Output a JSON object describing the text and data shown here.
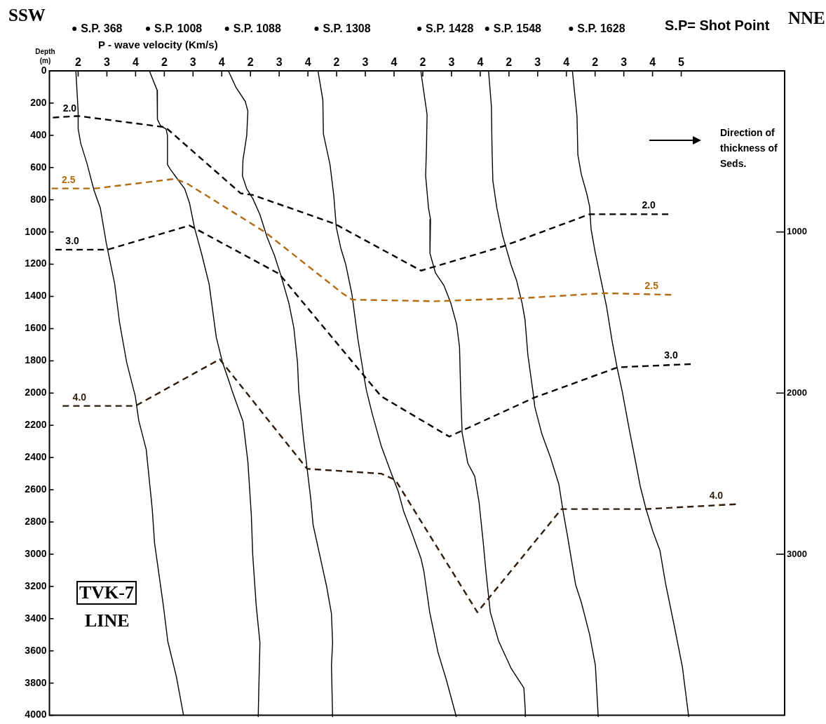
{
  "chart_data": [
    {
      "type": "line",
      "xlabel": "P - wave velocity (Km/s)",
      "ylabel": "Depth (m)",
      "legend": "top",
      "xlim": [
        1,
        26.6
      ],
      "xticks": [
        2,
        3,
        4
      ],
      "ylim": [
        4000,
        0
      ],
      "yticks": [
        0,
        200,
        400,
        600,
        800,
        1000,
        1200,
        1400,
        1600,
        1800,
        2000,
        2200,
        2400,
        2600,
        2800,
        3000,
        3200,
        3400,
        3600,
        3800,
        4000
      ],
      "y2lim": [
        4000,
        0
      ],
      "y2ticks": [
        1000,
        2000,
        3000
      ],
      "series": [
        {
          "name": "S.P. 368",
          "color": "#000000",
          "line_style": "solid",
          "x": [
            1.92,
            2.0,
            2.0,
            2.09,
            2.3,
            2.55,
            2.77,
            2.98,
            3.27,
            3.44,
            3.69,
            3.99,
            4.11,
            4.37,
            4.58,
            4.66,
            4.96,
            5.12,
            5.42,
            5.67
          ],
          "values": [
            0,
            250,
            360,
            450,
            570,
            740,
            850,
            1070,
            1320,
            1560,
            1810,
            2020,
            2170,
            2350,
            2720,
            2930,
            3310,
            3540,
            3760,
            4000
          ]
        },
        {
          "name": "2.0",
          "color": "#000000",
          "line_style": "dashed",
          "x": [
            1.12,
            2.0,
            5.04,
            7.66,
            8.08,
            10.94,
            13.94,
            16.78,
            19.81,
            20.11,
            22.55
          ],
          "values": [
            290,
            280,
            350,
            760,
            770,
            950,
            1240,
            1090,
            890,
            890,
            890
          ]
        },
        {
          "name": "2.5",
          "color": "#b36b12",
          "line_style": "dashed",
          "x": [
            1.08,
            2.6,
            5.38,
            5.8,
            8.5,
            11.2,
            11.53,
            14.43,
            17.56,
            20.3,
            22.65
          ],
          "values": [
            730,
            730,
            670,
            700,
            1000,
            1380,
            1420,
            1430,
            1410,
            1380,
            1390
          ]
        },
        {
          "name": "3.0",
          "color": "#000000",
          "line_style": "dashed",
          "x": [
            1.21,
            3.02,
            5.88,
            9.0,
            12.55,
            14.92,
            17.86,
            20.79,
            23.33
          ],
          "values": [
            1110,
            1110,
            960,
            1260,
            2020,
            2270,
            2030,
            1840,
            1820
          ]
        },
        {
          "name": "4.0",
          "color": "#2e1d0c",
          "line_style": "dashed",
          "x": [
            1.46,
            3.99,
            6.93,
            9.97,
            12.55,
            13.05,
            15.9,
            18.83,
            21.77,
            24.9
          ],
          "values": [
            2080,
            2080,
            1790,
            2470,
            2500,
            2540,
            3360,
            2720,
            2720,
            2690
          ]
        }
      ],
      "annotations": [
        "SSW",
        "S.P= Shot Point",
        "NNE",
        "Direction of thickness of Seds.",
        "TVK-7",
        "LINE"
      ]
    },
    {
      "type": "line",
      "legend": "top",
      "tick_labels": "x",
      "xlim": [
        -2,
        23.6
      ],
      "xticks": [
        2,
        3,
        4
      ],
      "ylim": [
        4000,
        0
      ],
      "series": [
        {
          "name": "S.P. 1008",
          "color": "#000000",
          "line_style": "solid",
          "x": [
            1.48,
            1.75,
            1.77,
            1.75,
            1.87,
            2.06,
            2.11,
            2.11,
            2.21,
            2.46,
            2.71,
            2.88,
            3.05,
            3.31,
            3.56,
            3.81,
            4.02,
            4.23,
            4.36,
            4.74,
            4.91,
            5.03,
            5.08,
            5.2,
            5.33,
            5.29,
            5.27
          ],
          "values": [
            0,
            120,
            220,
            300,
            340,
            360,
            400,
            580,
            610,
            670,
            730,
            820,
            970,
            1140,
            1320,
            1650,
            1800,
            1910,
            1980,
            2170,
            2420,
            2750,
            3000,
            3310,
            3540,
            3830,
            4000
          ]
        }
      ]
    },
    {
      "type": "line",
      "legend": "top",
      "tick_labels": "x",
      "xlim": [
        -5,
        20.6
      ],
      "xticks": [
        2,
        3,
        4
      ],
      "ylim": [
        4000,
        0
      ],
      "series": [
        {
          "name": "S.P. 1088",
          "color": "#000000",
          "line_style": "solid",
          "x": [
            1.23,
            1.49,
            1.82,
            1.91,
            1.87,
            1.74,
            1.72,
            1.87,
            2.08,
            2.33,
            2.58,
            2.83,
            3.05,
            3.34,
            3.51,
            3.64,
            3.68,
            3.85,
            4.1,
            4.18,
            4.44,
            4.65,
            4.82,
            4.86,
            4.82,
            4.86
          ],
          "values": [
            0,
            100,
            190,
            250,
            400,
            550,
            650,
            730,
            790,
            890,
            1030,
            1140,
            1260,
            1440,
            1590,
            1810,
            1980,
            2280,
            2650,
            2810,
            3020,
            3190,
            3360,
            3540,
            3680,
            4000
          ]
        }
      ]
    },
    {
      "type": "line",
      "legend": "top",
      "tick_labels": "x",
      "xlim": [
        -8,
        17.6
      ],
      "xticks": [
        2,
        3,
        4
      ],
      "ylim": [
        4000,
        0
      ],
      "series": [
        {
          "name": "S.P. 1308",
          "color": "#000000",
          "line_style": "solid",
          "x": [
            1.35,
            1.52,
            1.54,
            1.77,
            1.9,
            1.99,
            2.15,
            2.32,
            2.53,
            2.74,
            2.95,
            3.04,
            3.25,
            3.55,
            3.88,
            4.14,
            4.34,
            4.64,
            4.94,
            5.04,
            5.24,
            5.53,
            5.82,
            6.17
          ],
          "values": [
            0,
            180,
            390,
            580,
            770,
            970,
            1100,
            1200,
            1380,
            1660,
            1890,
            1980,
            2130,
            2320,
            2480,
            2600,
            2730,
            2870,
            3020,
            3100,
            3350,
            3600,
            3770,
            4000
          ]
        }
      ]
    },
    {
      "type": "line",
      "legend": "top",
      "tick_labels": "x",
      "xlim": [
        -11,
        14.6
      ],
      "xticks": [
        2,
        3,
        4
      ],
      "ylim": [
        4000,
        0
      ],
      "series": [
        {
          "name": "S.P. 1428",
          "color": "#000000",
          "line_style": "solid",
          "x": [
            1.93,
            2.15,
            2.13,
            2.1,
            2.2,
            2.27,
            2.25,
            2.44,
            2.74,
            2.98,
            3.18,
            3.28,
            3.32,
            3.37,
            3.57,
            3.81,
            3.96,
            4.1,
            4.2,
            4.35,
            4.64,
            5.08,
            5.52,
            5.57,
            5.57
          ],
          "values": [
            0,
            270,
            470,
            650,
            850,
            920,
            1130,
            1250,
            1330,
            1440,
            1570,
            1710,
            1990,
            2240,
            2430,
            2510,
            2670,
            2910,
            3100,
            3350,
            3530,
            3700,
            3820,
            3960,
            4000
          ]
        }
      ]
    },
    {
      "type": "line",
      "legend": "top",
      "tick_labels": "x",
      "xlim": [
        -14,
        11.6
      ],
      "xticks": [
        2,
        3,
        4
      ],
      "ylim": [
        4000,
        0
      ],
      "series": [
        {
          "name": "S.P. 1548",
          "color": "#000000",
          "line_style": "solid",
          "x": [
            1.29,
            1.39,
            1.41,
            1.44,
            1.58,
            1.78,
            2.07,
            2.27,
            2.46,
            2.56,
            2.66,
            2.84,
            2.9,
            3.15,
            3.44,
            3.74,
            3.88,
            4.03,
            4.32,
            4.52,
            4.81,
            5.01,
            5.11
          ],
          "values": [
            0,
            220,
            470,
            680,
            850,
            1020,
            1200,
            1300,
            1440,
            1540,
            1760,
            1990,
            2080,
            2250,
            2390,
            2560,
            2720,
            2870,
            3180,
            3290,
            3490,
            3680,
            4000
          ]
        }
      ]
    },
    {
      "type": "line",
      "legend": "top",
      "tick_labels": "x",
      "xlim": [
        -17,
        8.6
      ],
      "xticks": [
        2,
        3,
        4,
        5
      ],
      "ylim": [
        4000,
        0
      ],
      "series": [
        {
          "name": "S.P. 1628",
          "color": "#000000",
          "line_style": "solid",
          "x": [
            1.21,
            1.37,
            1.4,
            1.52,
            1.71,
            1.81,
            1.86,
            2.0,
            2.2,
            2.4,
            2.59,
            2.77,
            2.94,
            3.18,
            3.42,
            3.57,
            3.77,
            4.01,
            4.26,
            4.45,
            4.75,
            5.04,
            5.26
          ],
          "values": [
            0,
            280,
            520,
            640,
            760,
            840,
            980,
            1120,
            1290,
            1460,
            1670,
            1840,
            1980,
            2210,
            2430,
            2570,
            2710,
            2850,
            2970,
            3170,
            3430,
            3690,
            4000
          ]
        }
      ]
    }
  ]
}
